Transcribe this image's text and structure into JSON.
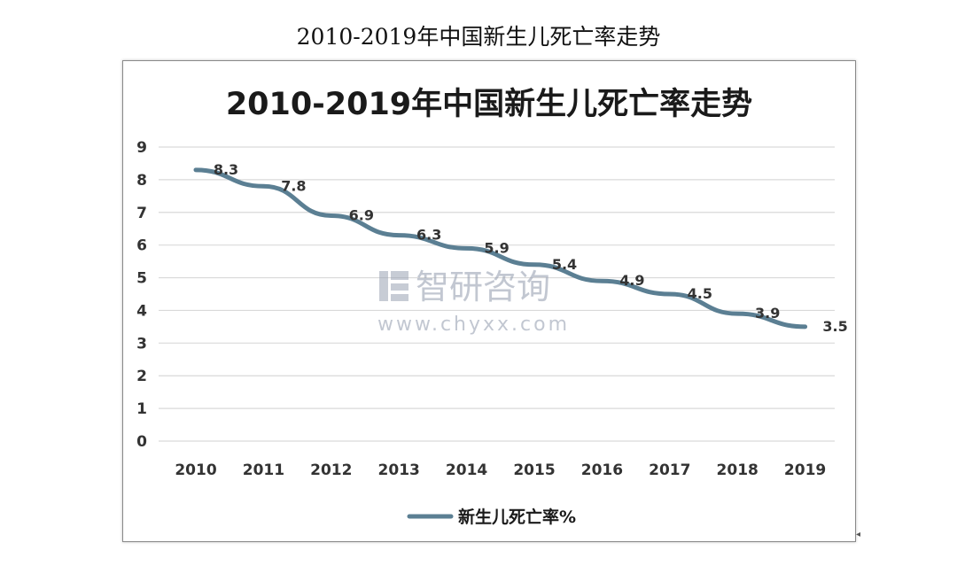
{
  "page_title": "2010-2019年中国新生儿死亡率走势",
  "watermark": {
    "brand": "智研咨询",
    "url": "www.chyxx.com",
    "color": "#9aa3b4"
  },
  "stray_mark": "◂",
  "colors": {
    "line": "#5b7f93",
    "grid": "#d9d9d9",
    "axis_text": "#333333",
    "title_text": "#1a1a1a"
  },
  "chart_data": {
    "type": "line",
    "title": "2010-2019年中国新生儿死亡率走势",
    "categories": [
      "2010",
      "2011",
      "2012",
      "2013",
      "2014",
      "2015",
      "2016",
      "2017",
      "2018",
      "2019"
    ],
    "series": [
      {
        "name": "新生儿死亡率%",
        "values": [
          8.3,
          7.8,
          6.9,
          6.3,
          5.9,
          5.4,
          4.9,
          4.5,
          3.9,
          3.5
        ]
      }
    ],
    "ylim": [
      0,
      9
    ],
    "yticks": [
      "0",
      "1",
      "2",
      "3",
      "4",
      "5",
      "6",
      "7",
      "8",
      "9"
    ],
    "grid": true,
    "legend_position": "bottom",
    "data_labels": [
      "8.3",
      "7.8",
      "6.9",
      "6.3",
      "5.9",
      "5.4",
      "4.9",
      "4.5",
      "3.9",
      "3.5"
    ]
  }
}
